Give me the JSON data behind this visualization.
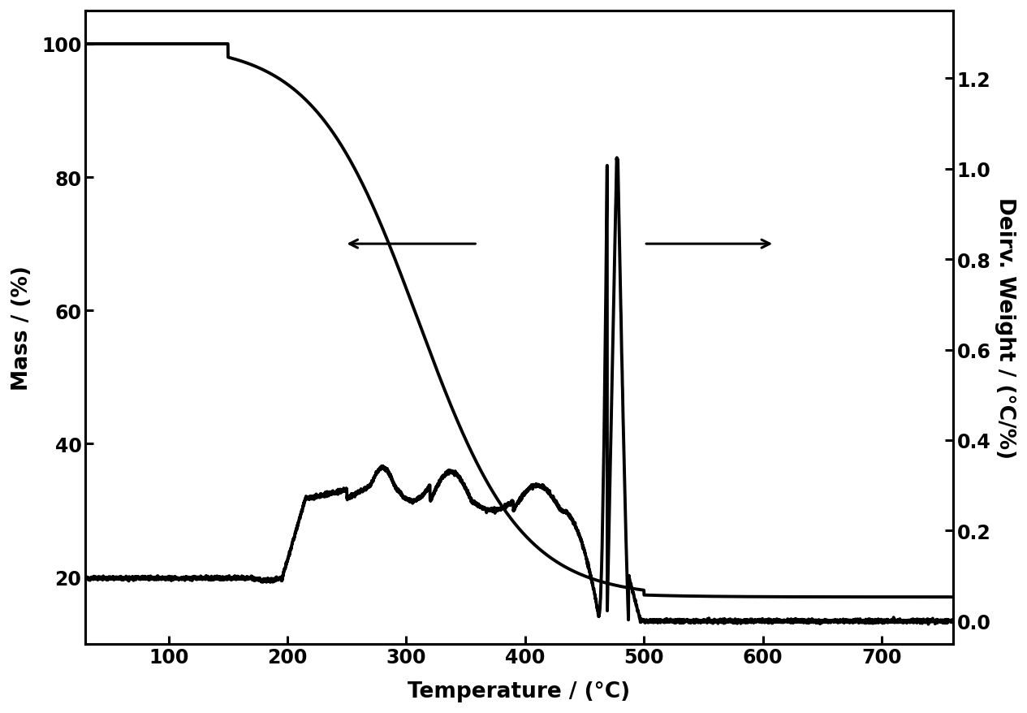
{
  "background_color": "#ffffff",
  "xlabel": "Temperature / (°C)",
  "ylabel_left": "Mass / (%)",
  "ylabel_right": "Deirv. Weight / (°C/%)",
  "xlim": [
    30,
    760
  ],
  "ylim_left": [
    10,
    105
  ],
  "ylim_right": [
    -0.05,
    1.35
  ],
  "xticks": [
    100,
    200,
    300,
    400,
    500,
    600,
    700
  ],
  "yticks_left": [
    20,
    40,
    60,
    80,
    100
  ],
  "yticks_right": [
    0.0,
    0.2,
    0.4,
    0.6,
    0.8,
    1.0,
    1.2
  ],
  "line_color": "#000000",
  "line_width": 2.8,
  "font_size_label": 19,
  "font_size_tick": 17,
  "tga_start_drop": 150,
  "tga_mid": 310,
  "tga_end": 500,
  "tga_high": 100.0,
  "tga_low": 17.0
}
